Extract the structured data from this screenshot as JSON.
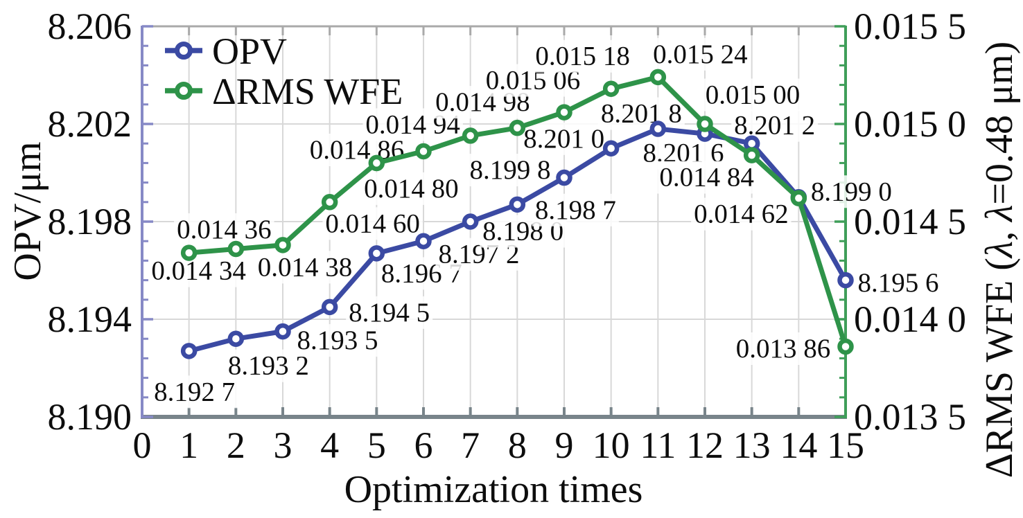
{
  "chart_data": {
    "type": "line",
    "title": "",
    "xlabel": "Optimization times",
    "x": [
      1,
      2,
      3,
      4,
      5,
      6,
      7,
      8,
      9,
      10,
      11,
      12,
      13,
      14,
      15
    ],
    "x_range": [
      0,
      15
    ],
    "x_ticks": [
      "0",
      "1",
      "2",
      "3",
      "4",
      "5",
      "6",
      "7",
      "8",
      "9",
      "10",
      "11",
      "12",
      "13",
      "14",
      "15"
    ],
    "grid": true,
    "legend_position": "top-left-inside",
    "left_axis": {
      "label": "OPV/μm",
      "range": [
        8.19,
        8.206
      ],
      "tick_values": [
        8.19,
        8.194,
        8.198,
        8.202,
        8.206
      ],
      "tick_labels": [
        "8.190",
        "8.194",
        "8.198",
        "8.202",
        "8.206"
      ],
      "minor_divisions": 20,
      "spine_color": "#8689c6"
    },
    "right_axis": {
      "label": "ΔRMS WFE (λ, λ=0.48 μm)",
      "range": [
        0.0135,
        0.0155
      ],
      "tick_values": [
        0.0135,
        0.014,
        0.0145,
        0.015,
        0.0155
      ],
      "tick_labels": [
        "0.013 5",
        "0.014 0",
        "0.014 5",
        "0.015 0",
        "0.015 5"
      ],
      "minor_divisions": 20,
      "spine_color": "#3f9e59"
    },
    "axis_colors": {
      "top_spine": "#a9a9a9",
      "bottom_spine": "#78848a",
      "grid": "#d8d8d8"
    },
    "series": [
      {
        "name": "OPV",
        "axis": "left",
        "color": "#3b4aa3",
        "values": [
          8.1927,
          8.1932,
          8.1935,
          8.1945,
          8.1967,
          8.1972,
          8.198,
          8.1987,
          8.1998,
          8.201,
          8.2018,
          8.2016,
          8.2012,
          8.199,
          8.1956
        ],
        "point_labels": [
          "8.192 7",
          "8.193 2",
          "8.193 5",
          "8.194 5",
          "8.196 7",
          "8.197 2",
          "8.198 0",
          "8.198 7",
          "8.199 8",
          "8.201 0",
          "8.201 8",
          "8.201 6",
          "8.201 2",
          "8.199 0",
          "8.195 6"
        ]
      },
      {
        "name": "ΔRMS WFE",
        "axis": "right",
        "color": "#2e9349",
        "values": [
          0.01434,
          0.01436,
          0.01438,
          0.0146,
          0.0148,
          0.01486,
          0.01494,
          0.01498,
          0.01506,
          0.01518,
          0.01524,
          0.015,
          0.01484,
          0.01462,
          0.01386
        ],
        "point_labels": [
          "0.014 34",
          "0.014 36",
          "0.014 38",
          "0.014 60",
          "0.014 80",
          "0.014 86",
          "0.014 94",
          "0.014 98",
          "0.015 06",
          "0.015 18",
          "0.015 24",
          "0.015 00",
          "0.014 84",
          "0.014 62",
          "0.013 86"
        ]
      }
    ]
  }
}
